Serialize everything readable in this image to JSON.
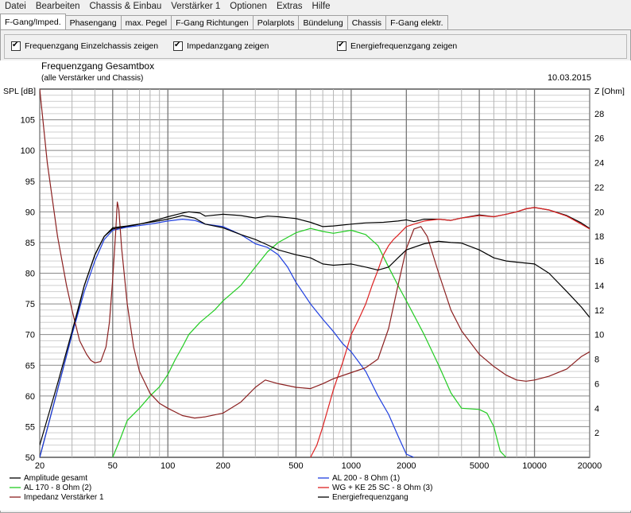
{
  "menu": [
    "Datei",
    "Bearbeiten",
    "Chassis & Einbau",
    "Verstärker 1",
    "Optionen",
    "Extras",
    "Hilfe"
  ],
  "tabs": [
    {
      "label": "F-Gang/Imped.",
      "active": true
    },
    {
      "label": "Phasengang",
      "active": false
    },
    {
      "label": "max. Pegel",
      "active": false
    },
    {
      "label": "F-Gang Richtungen",
      "active": false
    },
    {
      "label": "Polarplots",
      "active": false
    },
    {
      "label": "Bündelung",
      "active": false
    },
    {
      "label": "Chassis",
      "active": false
    },
    {
      "label": "F-Gang elektr.",
      "active": false
    }
  ],
  "options": [
    {
      "label": "Frequenzgang Einzelchassis zeigen",
      "checked": true
    },
    {
      "label": "Impedanzgang zeigen",
      "checked": true
    },
    {
      "label": "Energiefrequenzgang zeigen",
      "checked": true
    }
  ],
  "chart_data": {
    "type": "line",
    "title": "Frequenzgang Gesamtbox",
    "subtitle": "(alle Verstärker und Chassis)",
    "date": "10.03.2015",
    "ylabel_left": "SPL [dB]",
    "ylabel_right": "Z [Ohm]",
    "x_scale": "log",
    "xlim": [
      20,
      20000
    ],
    "ylim_left": [
      50,
      110
    ],
    "ylim_right": [
      0,
      30
    ],
    "x_ticks": [
      20,
      50,
      100,
      200,
      500,
      1000,
      2000,
      5000,
      10000,
      20000
    ],
    "y_ticks_left": [
      50,
      55,
      60,
      65,
      70,
      75,
      80,
      85,
      90,
      95,
      100,
      105
    ],
    "y_ticks_right": [
      2,
      4,
      6,
      8,
      10,
      12,
      14,
      16,
      18,
      20,
      22,
      24,
      26,
      28
    ],
    "grid": true,
    "legend_position": "bottom",
    "series": [
      {
        "name": "Amplitude gesamt",
        "color": "#000000",
        "axis": "left",
        "points": [
          [
            20,
            50
          ],
          [
            25,
            61
          ],
          [
            30,
            70
          ],
          [
            35,
            78
          ],
          [
            40,
            83
          ],
          [
            45,
            86
          ],
          [
            50,
            87.2
          ],
          [
            60,
            87.6
          ],
          [
            70,
            88
          ],
          [
            80,
            88.4
          ],
          [
            90,
            88.8
          ],
          [
            100,
            89.2
          ],
          [
            120,
            89.8
          ],
          [
            130,
            90
          ],
          [
            150,
            89.8
          ],
          [
            160,
            89.3
          ],
          [
            200,
            89.6
          ],
          [
            250,
            89.4
          ],
          [
            300,
            89
          ],
          [
            350,
            89.3
          ],
          [
            400,
            89.2
          ],
          [
            500,
            88.9
          ],
          [
            600,
            88.3
          ],
          [
            700,
            87.6
          ],
          [
            800,
            87.7
          ],
          [
            1000,
            88
          ],
          [
            1200,
            88.2
          ],
          [
            1500,
            88.3
          ],
          [
            1800,
            88.5
          ],
          [
            2000,
            88.7
          ],
          [
            2200,
            88.4
          ],
          [
            2500,
            88.8
          ],
          [
            3000,
            88.8
          ],
          [
            3500,
            88.6
          ],
          [
            4000,
            89
          ],
          [
            5000,
            89.5
          ],
          [
            6000,
            89.2
          ],
          [
            7000,
            89.6
          ],
          [
            8000,
            90
          ],
          [
            9000,
            90.5
          ],
          [
            10000,
            90.7
          ],
          [
            12000,
            90.3
          ],
          [
            15000,
            89.4
          ],
          [
            18000,
            88.2
          ],
          [
            20000,
            87.3
          ]
        ]
      },
      {
        "name": "AL 200 - 8 Ohm (1)",
        "color": "#1f3fe0",
        "axis": "left",
        "points": [
          [
            20,
            50
          ],
          [
            25,
            61
          ],
          [
            30,
            70
          ],
          [
            35,
            77
          ],
          [
            40,
            82
          ],
          [
            45,
            85.5
          ],
          [
            50,
            87
          ],
          [
            60,
            87.5
          ],
          [
            80,
            88
          ],
          [
            100,
            88.5
          ],
          [
            120,
            88.8
          ],
          [
            140,
            88.6
          ],
          [
            160,
            88
          ],
          [
            200,
            87.6
          ],
          [
            250,
            86.3
          ],
          [
            300,
            84.8
          ],
          [
            350,
            84.2
          ],
          [
            400,
            83
          ],
          [
            450,
            81
          ],
          [
            500,
            78.5
          ],
          [
            600,
            75
          ],
          [
            700,
            72.5
          ],
          [
            800,
            70.5
          ],
          [
            900,
            68.5
          ],
          [
            1000,
            67.2
          ],
          [
            1200,
            64
          ],
          [
            1400,
            60
          ],
          [
            1600,
            57
          ],
          [
            1800,
            53.5
          ],
          [
            2000,
            50.5
          ],
          [
            2200,
            50
          ]
        ]
      },
      {
        "name": "AL 170 - 8 Ohm (2)",
        "color": "#22cc22",
        "axis": "left",
        "points": [
          [
            50,
            50
          ],
          [
            55,
            53
          ],
          [
            60,
            56
          ],
          [
            70,
            58
          ],
          [
            80,
            60
          ],
          [
            90,
            61.5
          ],
          [
            100,
            63.5
          ],
          [
            110,
            66
          ],
          [
            120,
            68
          ],
          [
            130,
            70
          ],
          [
            150,
            72
          ],
          [
            180,
            74
          ],
          [
            200,
            75.5
          ],
          [
            250,
            78
          ],
          [
            300,
            81
          ],
          [
            350,
            83.5
          ],
          [
            400,
            85
          ],
          [
            500,
            86.6
          ],
          [
            600,
            87.3
          ],
          [
            700,
            86.8
          ],
          [
            800,
            86.5
          ],
          [
            1000,
            87
          ],
          [
            1200,
            86.3
          ],
          [
            1400,
            84.5
          ],
          [
            1600,
            81
          ],
          [
            1800,
            78
          ],
          [
            2000,
            75.5
          ],
          [
            2500,
            70
          ],
          [
            3000,
            65
          ],
          [
            3500,
            60.5
          ],
          [
            4000,
            58
          ],
          [
            5000,
            57.8
          ],
          [
            5500,
            57.2
          ],
          [
            6000,
            55
          ],
          [
            6500,
            51
          ],
          [
            7000,
            50
          ]
        ]
      },
      {
        "name": "WG + KE 25 SC - 8 Ohm (3)",
        "color": "#dd2222",
        "axis": "left",
        "points": [
          [
            600,
            50
          ],
          [
            650,
            52
          ],
          [
            700,
            55
          ],
          [
            800,
            61
          ],
          [
            900,
            65.5
          ],
          [
            1000,
            70
          ],
          [
            1100,
            72.5
          ],
          [
            1200,
            75
          ],
          [
            1300,
            78
          ],
          [
            1400,
            80.5
          ],
          [
            1500,
            83
          ],
          [
            1600,
            84.5
          ],
          [
            1700,
            85.5
          ],
          [
            1800,
            86.2
          ],
          [
            2000,
            87.6
          ],
          [
            2200,
            88
          ],
          [
            2500,
            88.5
          ],
          [
            3000,
            88.8
          ],
          [
            3500,
            88.6
          ],
          [
            4000,
            89
          ],
          [
            5000,
            89.4
          ],
          [
            6000,
            89.2
          ],
          [
            7000,
            89.6
          ],
          [
            8000,
            90
          ],
          [
            9000,
            90.5
          ],
          [
            10000,
            90.7
          ],
          [
            12000,
            90.3
          ],
          [
            15000,
            89.3
          ],
          [
            18000,
            88
          ],
          [
            20000,
            87.2
          ]
        ]
      },
      {
        "name": "Impedanz Verstärker 1",
        "color": "#8b2020",
        "axis": "right",
        "points": [
          [
            20,
            30
          ],
          [
            22,
            24
          ],
          [
            25,
            18
          ],
          [
            28,
            14
          ],
          [
            30,
            12
          ],
          [
            33,
            9.5
          ],
          [
            36,
            8.4
          ],
          [
            38,
            7.9
          ],
          [
            40,
            7.7
          ],
          [
            43,
            7.8
          ],
          [
            46,
            9
          ],
          [
            48,
            11
          ],
          [
            50,
            14.5
          ],
          [
            52,
            18.5
          ],
          [
            53,
            20.8
          ],
          [
            54,
            20.2
          ],
          [
            56,
            17
          ],
          [
            60,
            12.5
          ],
          [
            65,
            9
          ],
          [
            70,
            7
          ],
          [
            80,
            5.2
          ],
          [
            90,
            4.4
          ],
          [
            100,
            4.0
          ],
          [
            120,
            3.4
          ],
          [
            140,
            3.2
          ],
          [
            160,
            3.3
          ],
          [
            200,
            3.6
          ],
          [
            250,
            4.5
          ],
          [
            300,
            5.7
          ],
          [
            340,
            6.3
          ],
          [
            400,
            6.0
          ],
          [
            500,
            5.7
          ],
          [
            600,
            5.6
          ],
          [
            700,
            6.0
          ],
          [
            800,
            6.4
          ],
          [
            1000,
            6.9
          ],
          [
            1200,
            7.3
          ],
          [
            1400,
            8.0
          ],
          [
            1600,
            10.5
          ],
          [
            1800,
            14
          ],
          [
            2000,
            17
          ],
          [
            2200,
            18.6
          ],
          [
            2400,
            18.8
          ],
          [
            2600,
            18
          ],
          [
            3000,
            15
          ],
          [
            3500,
            12
          ],
          [
            4000,
            10.3
          ],
          [
            5000,
            8.4
          ],
          [
            6000,
            7.4
          ],
          [
            7000,
            6.7
          ],
          [
            8000,
            6.3
          ],
          [
            9000,
            6.2
          ],
          [
            10000,
            6.3
          ],
          [
            12000,
            6.6
          ],
          [
            15000,
            7.2
          ],
          [
            18000,
            8.2
          ],
          [
            20000,
            8.6
          ]
        ]
      },
      {
        "name": "Energiefrequenzgang",
        "color": "#000000",
        "axis": "left",
        "points": [
          [
            20,
            52
          ],
          [
            25,
            62
          ],
          [
            30,
            70.5
          ],
          [
            35,
            78
          ],
          [
            40,
            83
          ],
          [
            45,
            86
          ],
          [
            50,
            87.4
          ],
          [
            60,
            87.7
          ],
          [
            80,
            88.3
          ],
          [
            100,
            88.8
          ],
          [
            120,
            89.4
          ],
          [
            140,
            89
          ],
          [
            160,
            88
          ],
          [
            200,
            87.4
          ],
          [
            250,
            86.3
          ],
          [
            300,
            85.5
          ],
          [
            350,
            84.6
          ],
          [
            400,
            83.8
          ],
          [
            500,
            83
          ],
          [
            600,
            82.5
          ],
          [
            700,
            81.5
          ],
          [
            800,
            81.3
          ],
          [
            1000,
            81.5
          ],
          [
            1200,
            81
          ],
          [
            1400,
            80.5
          ],
          [
            1600,
            81
          ],
          [
            1800,
            82.5
          ],
          [
            2000,
            83.8
          ],
          [
            2500,
            84.8
          ],
          [
            3000,
            85.2
          ],
          [
            3500,
            85
          ],
          [
            4000,
            84.9
          ],
          [
            5000,
            83.8
          ],
          [
            6000,
            82.5
          ],
          [
            7000,
            82
          ],
          [
            8000,
            81.8
          ],
          [
            10000,
            81.5
          ],
          [
            12000,
            80
          ],
          [
            15000,
            77
          ],
          [
            18000,
            74.5
          ],
          [
            20000,
            72.8
          ]
        ]
      }
    ]
  }
}
